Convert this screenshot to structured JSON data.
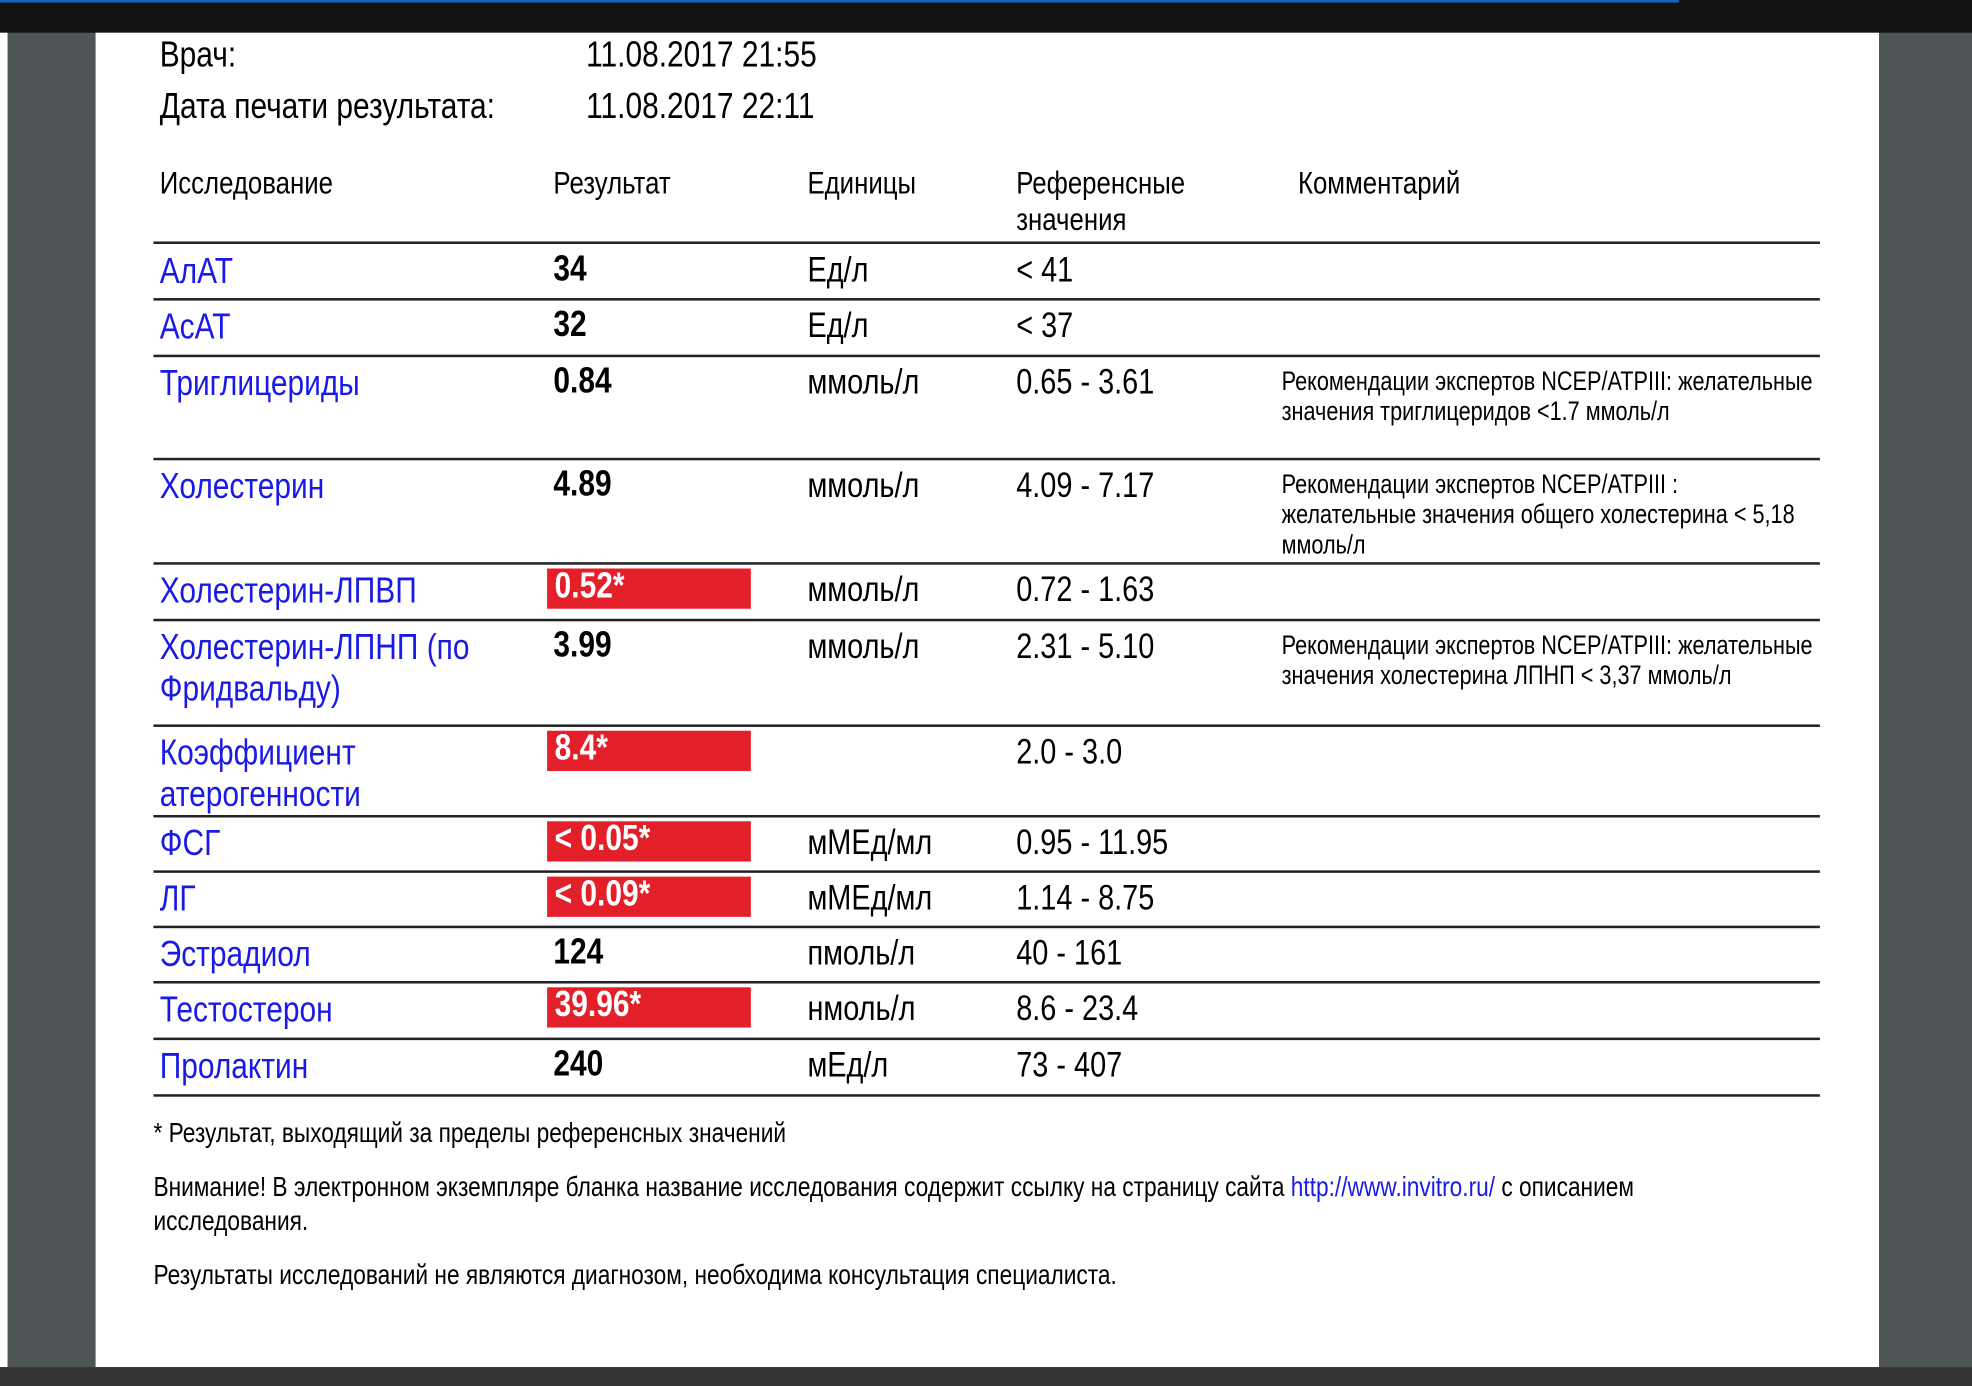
{
  "meta": {
    "doctor_label": "Врач:",
    "doctor_value": "11.08.2017 21:55",
    "print_label": "Дата печати результата:",
    "print_value": "11.08.2017 22:11"
  },
  "headers": {
    "test": "Исследование",
    "result": "Результат",
    "units": "Единицы",
    "ref": "Референсные значения",
    "comment": "Комментарий"
  },
  "flag_color": "#e3202a",
  "rows": [
    {
      "name": "АлАТ",
      "result": "34",
      "units": "Ед/л",
      "ref": "< 41",
      "comment": "",
      "flagged": false
    },
    {
      "name": "АсАТ",
      "result": "32",
      "units": "Ед/л",
      "ref": "< 37",
      "comment": "",
      "flagged": false
    },
    {
      "name": "Триглицериды",
      "result": "0.84",
      "units": "ммоль/л",
      "ref": "0.65 - 3.61",
      "comment": "Рекомендации экспертов NCEP/ATPIII: желательные значения триглицеридов <1.7 ммоль/л",
      "flagged": false
    },
    {
      "name": "Холестерин",
      "result": "4.89",
      "units": "ммоль/л",
      "ref": "4.09 - 7.17",
      "comment": "Рекомендации экспертов NCEP/ATPIII : желательные значения общего холестерина < 5,18 ммоль/л",
      "flagged": false
    },
    {
      "name": "Холестерин-ЛПВП",
      "result": "0.52*",
      "units": "ммоль/л",
      "ref": "0.72 - 1.63",
      "comment": "",
      "flagged": true
    },
    {
      "name": "Холестерин-ЛПНП (по Фридвальду)",
      "result": "3.99",
      "units": "ммоль/л",
      "ref": "2.31 - 5.10",
      "comment": "Рекомендации экспертов NCEP/ATPIII: желательные значения холестерина ЛПНП < 3,37 ммоль/л",
      "flagged": false
    },
    {
      "name": "Коэффициент атерогенности",
      "result": "8.4*",
      "units": "",
      "ref": "2.0 - 3.0",
      "comment": "",
      "flagged": true
    },
    {
      "name": "ФСГ",
      "result": "< 0.05*",
      "units": "мМЕд/мл",
      "ref": "0.95 - 11.95",
      "comment": "",
      "flagged": true
    },
    {
      "name": "ЛГ",
      "result": "< 0.09*",
      "units": "мМЕд/мл",
      "ref": "1.14 - 8.75",
      "comment": "",
      "flagged": true
    },
    {
      "name": "Эстрадиол",
      "result": "124",
      "units": "пмоль/л",
      "ref": "40 - 161",
      "comment": "",
      "flagged": false
    },
    {
      "name": "Тестостерон",
      "result": "39.96*",
      "units": "нмоль/л",
      "ref": "8.6 - 23.4",
      "comment": "",
      "flagged": true
    },
    {
      "name": "Пролактин",
      "result": "240",
      "units": "мЕд/л",
      "ref": "73 - 407",
      "comment": "",
      "flagged": false
    }
  ],
  "footer": {
    "note": "* Результат, выходящий за пределы референсных значений",
    "warning_pre": "Внимание! В электронном экземпляре бланка название исследования содержит ссылку на страницу сайта ",
    "warning_link": "http://www.invitro.ru/",
    "warning_post": " с описанием исследования.",
    "disclaimer": "Результаты исследований не являются диагнозом, необходима консультация специалиста."
  }
}
